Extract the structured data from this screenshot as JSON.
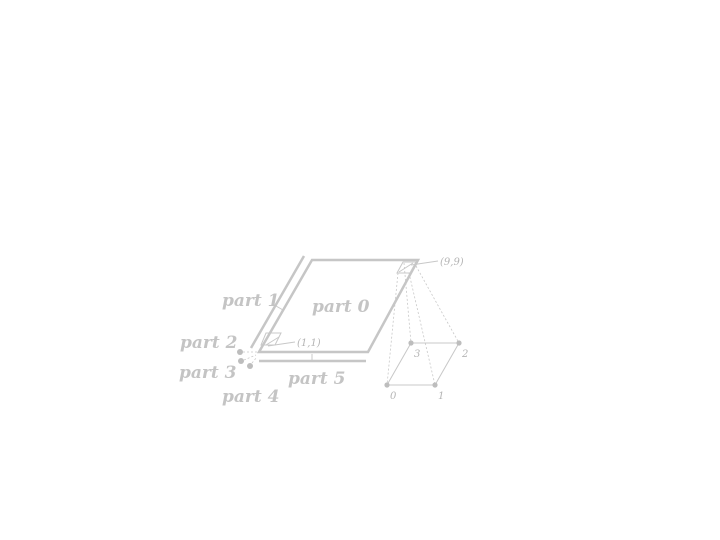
{
  "parts": {
    "part0": "part 0",
    "part1": "part 1",
    "part2": "part 2",
    "part3": "part 3",
    "part4": "part 4",
    "part5": "part 5"
  },
  "coords": {
    "top_right": "(9,9)",
    "bottom_left": "(1,1)"
  },
  "corners": {
    "c0": "0",
    "c1": "1",
    "c2": "2",
    "c3": "3"
  },
  "colors": {
    "stroke": "#c6c6c6",
    "label": "#c4c4c4"
  }
}
